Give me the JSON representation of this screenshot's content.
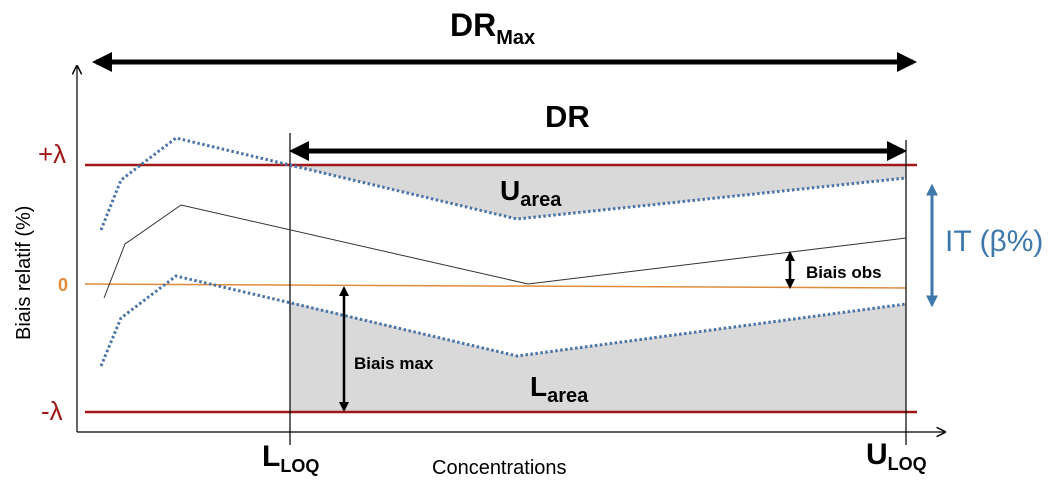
{
  "title": {
    "main": "DR",
    "sub": "Max"
  },
  "dr_label": "DR",
  "y_axis_label": "Biais relatif (%)",
  "x_axis_label": "Concentrations",
  "plus_lambda": "+λ",
  "zero": "0",
  "minus_lambda": "-λ",
  "lloq": {
    "main": "L",
    "sub": "LOQ"
  },
  "uloq": {
    "main": "U",
    "sub": "LOQ"
  },
  "u_area": {
    "main": "U",
    "sub": "area"
  },
  "l_area": {
    "main": "L",
    "sub": "area"
  },
  "biais_obs": "Biais obs",
  "biais_max": "Biais max",
  "it_label": "IT (β%)",
  "colors": {
    "limit_line": "#a01818",
    "zero_line": "#e08a3c",
    "tolerance_dotted": "#4a74a8",
    "it_arrow": "#3e78ad",
    "area_fill": "#d9d9d9"
  }
}
